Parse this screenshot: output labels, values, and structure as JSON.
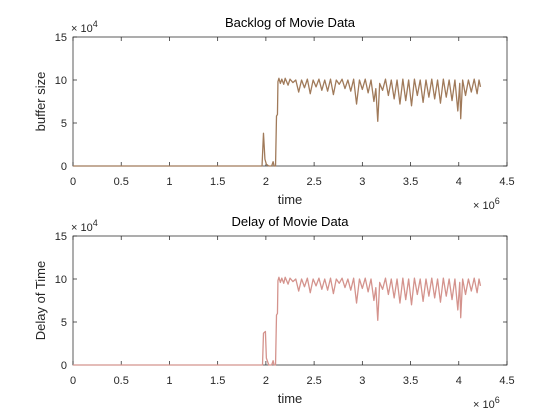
{
  "chart_data": [
    {
      "type": "line",
      "title": "Backlog of Movie Data",
      "xlabel": "time",
      "ylabel": "buffer size",
      "xlim": [
        0,
        4500000
      ],
      "ylim": [
        0,
        150000
      ],
      "x_ticks": [
        0,
        500000,
        1000000,
        1500000,
        2000000,
        2500000,
        3000000,
        3500000,
        4000000,
        4500000
      ],
      "x_tick_labels": [
        "0",
        "0.5",
        "1",
        "1.5",
        "2",
        "2.5",
        "3",
        "3.5",
        "4",
        "4.5"
      ],
      "y_ticks": [
        0,
        50000,
        100000,
        150000
      ],
      "y_tick_labels": [
        "0",
        "5",
        "10",
        "15"
      ],
      "x_multiplier": {
        "base": "× 10",
        "exp": "6"
      },
      "y_multiplier": {
        "base": "× 10",
        "exp": "4"
      },
      "grid": false,
      "color": "#a07a5a",
      "series": [
        {
          "points": [
            [
              0,
              0
            ],
            [
              1960000,
              0
            ],
            [
              1975000,
              38000
            ],
            [
              1990000,
              8000
            ],
            [
              2005000,
              2000
            ],
            [
              2030000,
              0
            ],
            [
              2060000,
              0
            ],
            [
              2075000,
              5000
            ],
            [
              2085000,
              0
            ],
            [
              2100000,
              0
            ],
            [
              2110000,
              58000
            ],
            [
              2120000,
              60000
            ],
            [
              2125000,
              98000
            ],
            [
              2135000,
              102000
            ],
            [
              2150000,
              96000
            ],
            [
              2165000,
              101000
            ],
            [
              2185000,
              95000
            ],
            [
              2200000,
              102000
            ],
            [
              2230000,
              94000
            ],
            [
              2250000,
              101000
            ],
            [
              2280000,
              97000
            ],
            [
              2310000,
              100000
            ],
            [
              2340000,
              86000
            ],
            [
              2370000,
              100000
            ],
            [
              2400000,
              91000
            ],
            [
              2430000,
              101000
            ],
            [
              2460000,
              84000
            ],
            [
              2490000,
              100000
            ],
            [
              2520000,
              92000
            ],
            [
              2550000,
              101000
            ],
            [
              2580000,
              88000
            ],
            [
              2610000,
              100000
            ],
            [
              2640000,
              87000
            ],
            [
              2670000,
              101000
            ],
            [
              2700000,
              83000
            ],
            [
              2730000,
              100000
            ],
            [
              2760000,
              95000
            ],
            [
              2790000,
              101000
            ],
            [
              2820000,
              90000
            ],
            [
              2850000,
              100000
            ],
            [
              2880000,
              87000
            ],
            [
              2910000,
              101000
            ],
            [
              2940000,
              72000
            ],
            [
              2970000,
              100000
            ],
            [
              3000000,
              89000
            ],
            [
              3030000,
              101000
            ],
            [
              3060000,
              85000
            ],
            [
              3090000,
              100000
            ],
            [
              3120000,
              75000
            ],
            [
              3140000,
              90000
            ],
            [
              3160000,
              52000
            ],
            [
              3180000,
              96000
            ],
            [
              3210000,
              88000
            ],
            [
              3240000,
              101000
            ],
            [
              3270000,
              82000
            ],
            [
              3300000,
              100000
            ],
            [
              3330000,
              78000
            ],
            [
              3360000,
              100000
            ],
            [
              3390000,
              72000
            ],
            [
              3420000,
              101000
            ],
            [
              3450000,
              76000
            ],
            [
              3480000,
              100000
            ],
            [
              3510000,
              70000
            ],
            [
              3540000,
              101000
            ],
            [
              3570000,
              82000
            ],
            [
              3600000,
              100000
            ],
            [
              3630000,
              74000
            ],
            [
              3660000,
              100000
            ],
            [
              3690000,
              80000
            ],
            [
              3720000,
              101000
            ],
            [
              3750000,
              78000
            ],
            [
              3780000,
              100000
            ],
            [
              3810000,
              73000
            ],
            [
              3840000,
              101000
            ],
            [
              3870000,
              80000
            ],
            [
              3900000,
              100000
            ],
            [
              3930000,
              76000
            ],
            [
              3960000,
              100000
            ],
            [
              3990000,
              64000
            ],
            [
              4010000,
              96000
            ],
            [
              4020000,
              55000
            ],
            [
              4040000,
              100000
            ],
            [
              4070000,
              82000
            ],
            [
              4100000,
              100000
            ],
            [
              4130000,
              86000
            ],
            [
              4160000,
              101000
            ],
            [
              4190000,
              84000
            ],
            [
              4210000,
              100000
            ],
            [
              4225000,
              92000
            ]
          ]
        }
      ]
    },
    {
      "type": "line",
      "title": "Delay of Movie Data",
      "xlabel": "time",
      "ylabel": "Delay of Time",
      "xlim": [
        0,
        4500000
      ],
      "ylim": [
        0,
        150000
      ],
      "x_ticks": [
        0,
        500000,
        1000000,
        1500000,
        2000000,
        2500000,
        3000000,
        3500000,
        4000000,
        4500000
      ],
      "x_tick_labels": [
        "0",
        "0.5",
        "1",
        "1.5",
        "2",
        "2.5",
        "3",
        "3.5",
        "4",
        "4.5"
      ],
      "y_ticks": [
        0,
        50000,
        100000,
        150000
      ],
      "y_tick_labels": [
        "0",
        "5",
        "10",
        "15"
      ],
      "x_multiplier": {
        "base": "× 10",
        "exp": "6"
      },
      "y_multiplier": {
        "base": "× 10",
        "exp": "4"
      },
      "grid": false,
      "color": "#d4938d",
      "series": [
        {
          "points": [
            [
              0,
              0
            ],
            [
              1965000,
              0
            ],
            [
              1975000,
              37000
            ],
            [
              1995000,
              39000
            ],
            [
              2005000,
              8000
            ],
            [
              2030000,
              0
            ],
            [
              2060000,
              0
            ],
            [
              2075000,
              5000
            ],
            [
              2085000,
              0
            ],
            [
              2100000,
              0
            ],
            [
              2110000,
              58000
            ],
            [
              2120000,
              60000
            ],
            [
              2125000,
              98000
            ],
            [
              2135000,
              102000
            ],
            [
              2150000,
              96000
            ],
            [
              2165000,
              101000
            ],
            [
              2185000,
              95000
            ],
            [
              2200000,
              102000
            ],
            [
              2230000,
              94000
            ],
            [
              2250000,
              101000
            ],
            [
              2280000,
              97000
            ],
            [
              2310000,
              100000
            ],
            [
              2340000,
              86000
            ],
            [
              2370000,
              100000
            ],
            [
              2400000,
              91000
            ],
            [
              2430000,
              101000
            ],
            [
              2460000,
              84000
            ],
            [
              2490000,
              100000
            ],
            [
              2520000,
              92000
            ],
            [
              2550000,
              101000
            ],
            [
              2580000,
              88000
            ],
            [
              2610000,
              100000
            ],
            [
              2640000,
              87000
            ],
            [
              2670000,
              101000
            ],
            [
              2700000,
              83000
            ],
            [
              2730000,
              100000
            ],
            [
              2760000,
              95000
            ],
            [
              2790000,
              101000
            ],
            [
              2820000,
              90000
            ],
            [
              2850000,
              100000
            ],
            [
              2880000,
              87000
            ],
            [
              2910000,
              101000
            ],
            [
              2940000,
              72000
            ],
            [
              2970000,
              100000
            ],
            [
              3000000,
              89000
            ],
            [
              3030000,
              101000
            ],
            [
              3060000,
              85000
            ],
            [
              3090000,
              100000
            ],
            [
              3120000,
              75000
            ],
            [
              3140000,
              90000
            ],
            [
              3160000,
              52000
            ],
            [
              3180000,
              96000
            ],
            [
              3210000,
              88000
            ],
            [
              3240000,
              101000
            ],
            [
              3270000,
              82000
            ],
            [
              3300000,
              100000
            ],
            [
              3330000,
              78000
            ],
            [
              3360000,
              100000
            ],
            [
              3390000,
              72000
            ],
            [
              3420000,
              101000
            ],
            [
              3450000,
              76000
            ],
            [
              3480000,
              100000
            ],
            [
              3510000,
              70000
            ],
            [
              3540000,
              101000
            ],
            [
              3570000,
              82000
            ],
            [
              3600000,
              100000
            ],
            [
              3630000,
              74000
            ],
            [
              3660000,
              100000
            ],
            [
              3690000,
              80000
            ],
            [
              3720000,
              101000
            ],
            [
              3750000,
              78000
            ],
            [
              3780000,
              100000
            ],
            [
              3810000,
              73000
            ],
            [
              3840000,
              101000
            ],
            [
              3870000,
              80000
            ],
            [
              3900000,
              100000
            ],
            [
              3930000,
              76000
            ],
            [
              3960000,
              100000
            ],
            [
              3990000,
              64000
            ],
            [
              4010000,
              96000
            ],
            [
              4020000,
              55000
            ],
            [
              4040000,
              100000
            ],
            [
              4070000,
              82000
            ],
            [
              4100000,
              100000
            ],
            [
              4130000,
              86000
            ],
            [
              4160000,
              101000
            ],
            [
              4190000,
              84000
            ],
            [
              4210000,
              100000
            ],
            [
              4225000,
              92000
            ]
          ]
        }
      ]
    }
  ]
}
